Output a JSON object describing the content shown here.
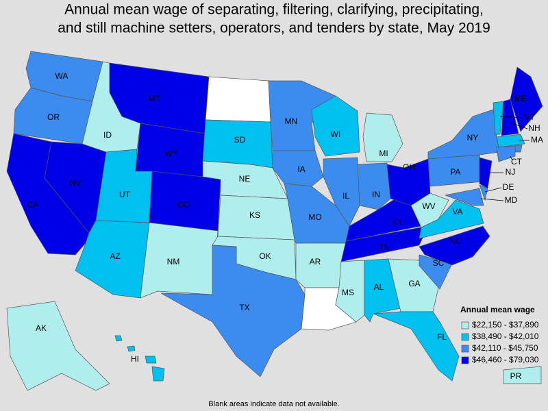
{
  "title": [
    "Annual mean wage of separating, filtering, clarifying, precipitating,",
    "and still machine setters, operators, and tenders by state, May 2019"
  ],
  "legend": {
    "title": "Annual mean wage",
    "items": [
      {
        "label": "$22,150 - $37,890",
        "color": "#b0eeee"
      },
      {
        "label": "$38,490 - $42,010",
        "color": "#00c0f0"
      },
      {
        "label": "$42,110 - $45,750",
        "color": "#3c8cf0"
      },
      {
        "label": "$46,460 - $79,030",
        "color": "#0000e6"
      }
    ]
  },
  "blank_color": "#ffffff",
  "states": [
    {
      "label": "WA",
      "bin": 2
    },
    {
      "label": "OR",
      "bin": 2
    },
    {
      "label": "CA",
      "bin": 3
    },
    {
      "label": "NV",
      "bin": 3
    },
    {
      "label": "ID",
      "bin": 0
    },
    {
      "label": "MT",
      "bin": 3
    },
    {
      "label": "WY",
      "bin": 3
    },
    {
      "label": "UT",
      "bin": 1
    },
    {
      "label": "CO",
      "bin": 3
    },
    {
      "label": "AZ",
      "bin": 1
    },
    {
      "label": "NM",
      "bin": 0
    },
    {
      "label": null,
      "bin": null
    },
    {
      "label": "SD",
      "bin": 1
    },
    {
      "label": "NE",
      "bin": 0
    },
    {
      "label": "KS",
      "bin": 0
    },
    {
      "label": "OK",
      "bin": 0
    },
    {
      "label": "TX",
      "bin": 2
    },
    {
      "label": "MN",
      "bin": 2
    },
    {
      "label": "IA",
      "bin": 2
    },
    {
      "label": "MO",
      "bin": 2
    },
    {
      "label": "AR",
      "bin": 0
    },
    {
      "label": null,
      "bin": null
    },
    {
      "label": "WI",
      "bin": 1
    },
    {
      "label": "IL",
      "bin": 2
    },
    {
      "label": "MI",
      "bin": 0
    },
    {
      "label": "IN",
      "bin": 2
    },
    {
      "label": "KY",
      "bin": 3
    },
    {
      "label": "TN",
      "bin": 3
    },
    {
      "label": "MS",
      "bin": 0
    },
    {
      "label": "AL",
      "bin": 1
    },
    {
      "label": "GA",
      "bin": 0
    },
    {
      "label": "FL",
      "bin": 1
    },
    {
      "label": "SC",
      "bin": 2
    },
    {
      "label": "NC",
      "bin": 3
    },
    {
      "label": "VA",
      "bin": 1
    },
    {
      "label": "WV",
      "bin": 0
    },
    {
      "label": "OH",
      "bin": 3
    },
    {
      "label": "PA",
      "bin": 2
    },
    {
      "label": "NY",
      "bin": 2
    },
    {
      "label": "ME",
      "bin": 3
    },
    {
      "label": "VT",
      "bin": 1
    },
    {
      "label": "NH",
      "bin": 3
    },
    {
      "label": "MA",
      "bin": 1
    },
    {
      "label": null,
      "bin": 2
    },
    {
      "label": "CT",
      "bin": 2
    },
    {
      "label": "NJ",
      "bin": 3
    },
    {
      "label": "DE",
      "bin": 2
    },
    {
      "label": "MD",
      "bin": 2
    },
    {
      "label": "AK",
      "bin": 0
    },
    {
      "label": "HI",
      "bin": 1
    },
    {
      "label": "PR",
      "bin": 0
    }
  ],
  "footnote": "Blank areas indicate data not available."
}
